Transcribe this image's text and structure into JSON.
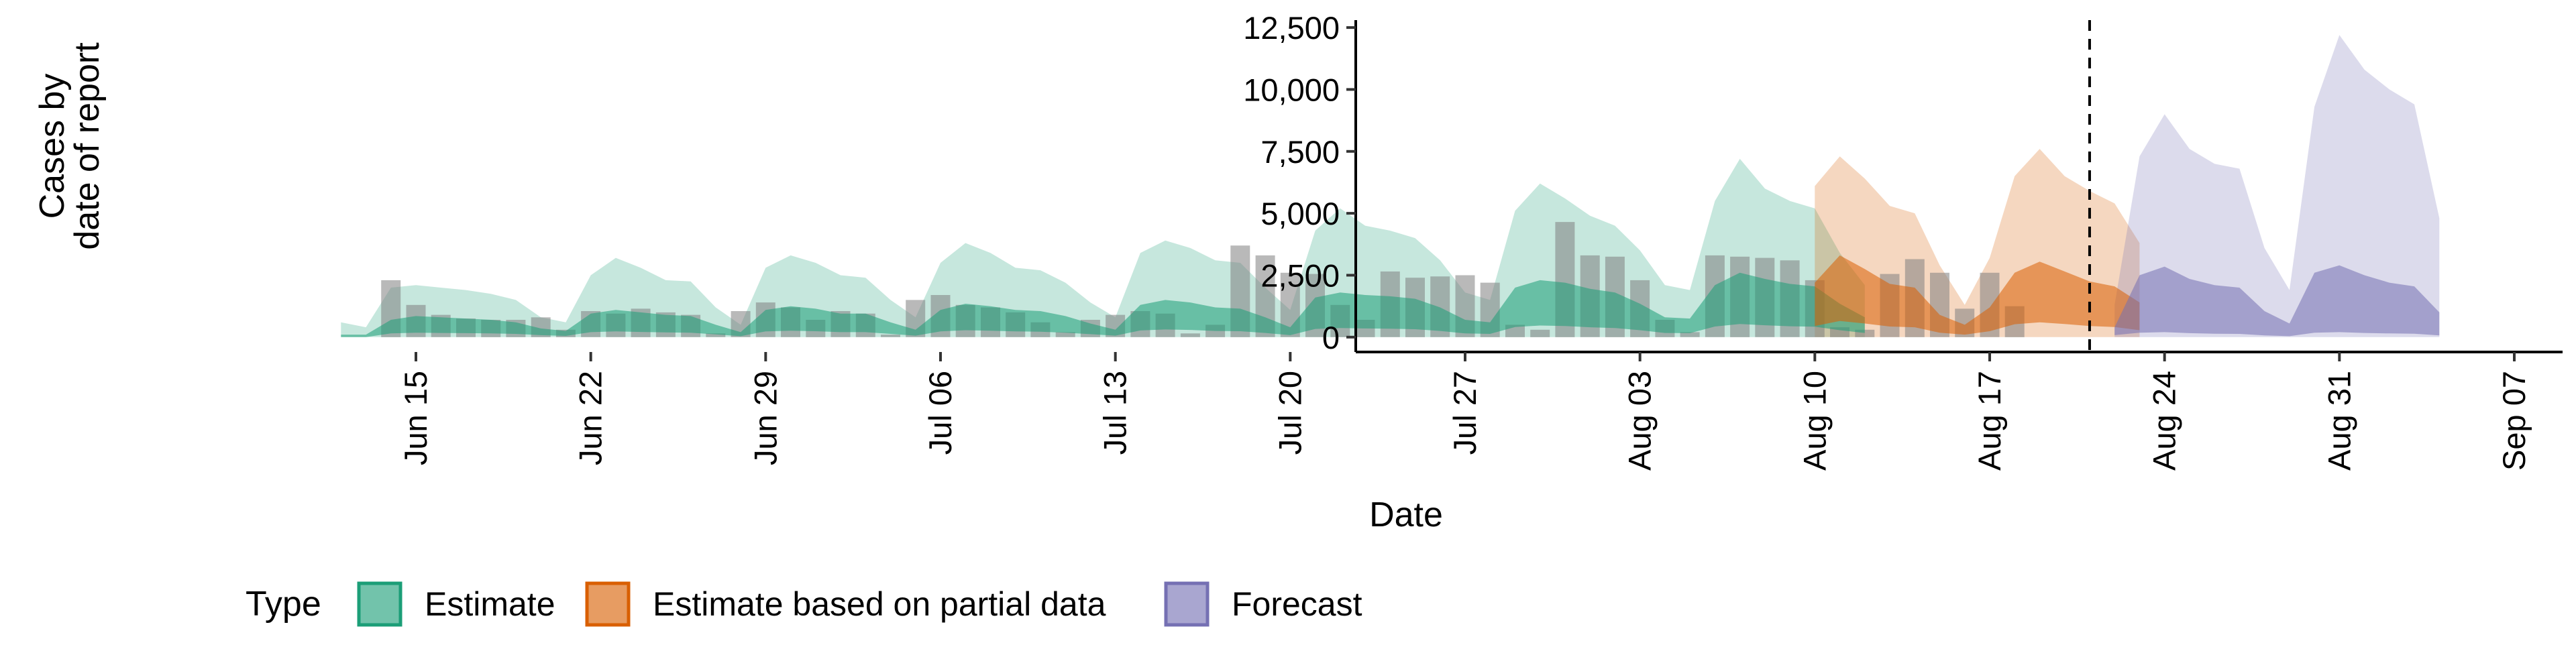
{
  "chart_data": {
    "type": "area",
    "title": "",
    "xlabel": "Date",
    "ylabel_lines": [
      "Cases by",
      "date of report"
    ],
    "ylim": [
      -600,
      12800
    ],
    "yticks": [
      0,
      2500,
      5000,
      7500,
      10000,
      12500
    ],
    "ytick_labels": [
      "0",
      "2,500",
      "5,000",
      "7,500",
      "10,000",
      "12,500"
    ],
    "x_domain_days": [
      -11.3,
      74.8
    ],
    "x_origin_date": "Jun 12",
    "xticks": [
      {
        "day": 3,
        "label": "Jun 15"
      },
      {
        "day": 10,
        "label": "Jun 22"
      },
      {
        "day": 17,
        "label": "Jun 29"
      },
      {
        "day": 24,
        "label": "Jul 06"
      },
      {
        "day": 31,
        "label": "Jul 13"
      },
      {
        "day": 38,
        "label": "Jul 20"
      },
      {
        "day": 45,
        "label": "Jul 27"
      },
      {
        "day": 52,
        "label": "Aug 03"
      },
      {
        "day": 59,
        "label": "Aug 10"
      },
      {
        "day": 66,
        "label": "Aug 17"
      },
      {
        "day": 73,
        "label": "Aug 24"
      },
      {
        "day": 80,
        "label": "Aug 31"
      },
      {
        "day": 87,
        "label": "Sep 07"
      }
    ],
    "forecast_divider_day": 70,
    "legend": {
      "position": "bottom",
      "title": "Type",
      "entries": [
        {
          "label": "Estimate",
          "color": "#1b9e77"
        },
        {
          "label": "Estimate based on partial data",
          "color": "#d95f02"
        },
        {
          "label": "Forecast",
          "color": "#7570b3"
        }
      ]
    },
    "bar_color": "#7f7f7f",
    "observed_cases": {
      "start_day": 2,
      "values": [
        2300,
        1300,
        900,
        750,
        700,
        700,
        800,
        300,
        1050,
        950,
        1150,
        1000,
        900,
        150,
        1050,
        1400,
        1200,
        700,
        1050,
        950,
        100,
        1500,
        1700,
        1300,
        1200,
        1000,
        600,
        200,
        700,
        900,
        1050,
        950,
        150,
        500,
        3700,
        3300,
        2600,
        2550,
        1300,
        700,
        2650,
        2400,
        2450,
        2500,
        2200,
        500,
        300,
        4650,
        3300,
        3250,
        2300,
        700,
        200,
        3300,
        3250,
        3200,
        3100,
        2300,
        400,
        300,
        2550,
        3150,
        2600,
        1150,
        2600,
        1250
      ]
    },
    "series": [
      {
        "name": "Estimate",
        "color": "#1b9e77",
        "start_day": 0,
        "outer_upper": [
          600,
          400,
          2000,
          2100,
          2000,
          1900,
          1750,
          1500,
          800,
          600,
          2500,
          3200,
          2800,
          2300,
          2250,
          1200,
          500,
          2800,
          3300,
          3000,
          2500,
          2400,
          1500,
          800,
          3000,
          3800,
          3400,
          2800,
          2700,
          2200,
          1400,
          800,
          3400,
          3900,
          3600,
          3100,
          3000,
          2000,
          1100,
          4300,
          5200,
          4500,
          4300,
          4000,
          3100,
          1800,
          1500,
          5100,
          6200,
          5600,
          4900,
          4500,
          3500,
          2100,
          1900,
          5500,
          7200,
          6000,
          5500,
          5200,
          3400,
          2100
        ],
        "outer_lower": [
          0,
          0,
          0,
          0,
          0,
          0,
          0,
          0,
          0,
          0,
          0,
          0,
          0,
          0,
          0,
          0,
          0,
          0,
          0,
          0,
          0,
          0,
          0,
          0,
          0,
          0,
          0,
          0,
          0,
          0,
          0,
          0,
          0,
          0,
          0,
          0,
          0,
          0,
          0,
          0,
          0,
          0,
          0,
          0,
          0,
          0,
          0,
          0,
          0,
          0,
          0,
          0,
          0,
          0,
          0,
          0,
          0,
          0,
          0,
          0,
          0,
          0
        ],
        "inner_upper": [
          100,
          100,
          700,
          850,
          800,
          750,
          700,
          600,
          350,
          250,
          950,
          1100,
          1000,
          900,
          850,
          500,
          200,
          1100,
          1250,
          1150,
          950,
          950,
          600,
          300,
          1100,
          1350,
          1250,
          1100,
          1050,
          850,
          550,
          300,
          1300,
          1500,
          1400,
          1200,
          1150,
          800,
          400,
          1600,
          1800,
          1700,
          1650,
          1550,
          1200,
          700,
          600,
          2000,
          2300,
          2200,
          1950,
          1800,
          1350,
          800,
          750,
          2100,
          2600,
          2350,
          2150,
          2050,
          1350,
          800
        ],
        "inner_lower": [
          0,
          0,
          150,
          180,
          170,
          160,
          150,
          130,
          80,
          50,
          200,
          230,
          210,
          190,
          180,
          110,
          40,
          230,
          260,
          240,
          200,
          200,
          130,
          60,
          230,
          280,
          260,
          230,
          220,
          180,
          120,
          60,
          270,
          310,
          290,
          250,
          240,
          170,
          80,
          330,
          370,
          350,
          340,
          320,
          250,
          150,
          130,
          410,
          470,
          450,
          400,
          370,
          280,
          170,
          160,
          430,
          530,
          480,
          440,
          420,
          280,
          170
        ]
      },
      {
        "name": "Estimate based on partial data",
        "color": "#d95f02",
        "start_day": 59,
        "outer_upper": [
          6100,
          7300,
          6400,
          5300,
          5000,
          2900,
          1300,
          3200,
          6500,
          7600,
          6500,
          5900,
          5400,
          3800
        ],
        "outer_lower": [
          0,
          0,
          0,
          0,
          0,
          0,
          0,
          0,
          0,
          0,
          0,
          0,
          0,
          0
        ],
        "inner_upper": [
          2200,
          3300,
          2750,
          2150,
          2000,
          900,
          500,
          1200,
          2600,
          3050,
          2650,
          2250,
          2050,
          1400
        ],
        "inner_lower": [
          450,
          650,
          550,
          430,
          400,
          180,
          100,
          240,
          520,
          600,
          530,
          450,
          410,
          280
        ]
      },
      {
        "name": "Forecast",
        "color": "#7570b3",
        "start_day": 71,
        "outer_upper": [
          1300,
          7300,
          9000,
          7600,
          7000,
          6800,
          3600,
          1900,
          9300,
          12200,
          10800,
          10000,
          9400,
          4800
        ],
        "outer_lower": [
          0,
          0,
          0,
          0,
          0,
          0,
          0,
          0,
          0,
          0,
          0,
          0,
          0,
          0
        ],
        "inner_upper": [
          400,
          2500,
          2850,
          2350,
          2100,
          2000,
          1050,
          550,
          2600,
          2900,
          2500,
          2200,
          2050,
          1000
        ],
        "inner_lower": [
          80,
          180,
          200,
          160,
          140,
          130,
          70,
          40,
          180,
          200,
          170,
          150,
          140,
          70
        ]
      }
    ]
  }
}
